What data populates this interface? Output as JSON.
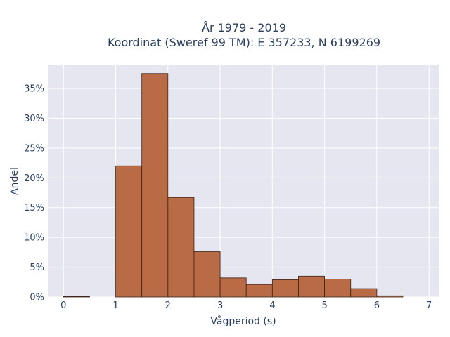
{
  "chart_data": {
    "type": "bar",
    "title_line1": "År 1979 - 2019",
    "title_line2": "Koordinat (Sweref 99 TM): E 357233, N 6199269",
    "xlabel": "Vågperiod (s)",
    "ylabel": "Andel",
    "bin_edges": [
      0,
      0.5,
      1,
      1.5,
      2,
      2.5,
      3,
      3.5,
      4,
      4.5,
      5,
      5.5,
      6,
      6.5
    ],
    "values": [
      0.001,
      0,
      0.22,
      0.375,
      0.167,
      0.076,
      0.032,
      0.021,
      0.029,
      0.035,
      0.03,
      0.014,
      0.002
    ],
    "xlim": [
      -0.3,
      7.2
    ],
    "ylim": [
      0,
      0.39
    ],
    "x_ticks": [
      0,
      1,
      2,
      3,
      4,
      5,
      6,
      7
    ],
    "x_tick_labels": [
      "0",
      "1",
      "2",
      "3",
      "4",
      "5",
      "6",
      "7"
    ],
    "y_ticks": [
      0,
      0.05,
      0.1,
      0.15,
      0.2,
      0.25,
      0.3,
      0.35
    ],
    "y_tick_labels": [
      "0%",
      "5%",
      "10%",
      "15%",
      "20%",
      "25%",
      "30%",
      "35%"
    ],
    "grid": true,
    "bar_color": "#b86b45",
    "bar_edge_color": "#3a2418",
    "plot_bg": "#e5e6ef",
    "grid_color": "#ffffff"
  }
}
